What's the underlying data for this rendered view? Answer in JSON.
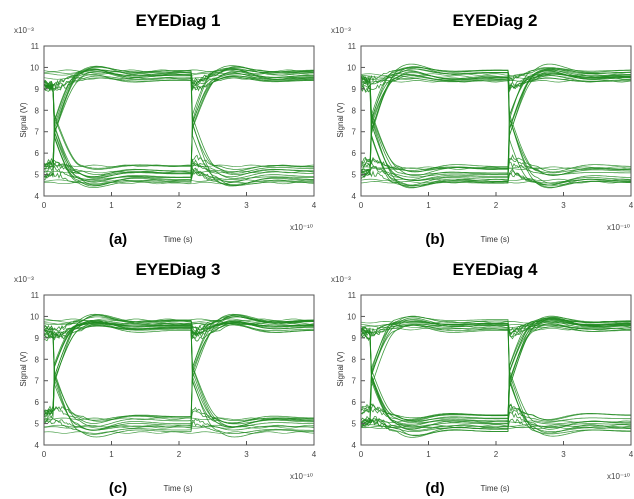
{
  "chart_data": [
    {
      "type": "line",
      "title": "EYEDiag 1",
      "panel_label": "(a)",
      "xlabel": "Time (s)",
      "ylabel": "Signal (V)",
      "x_exponent": "x10⁻¹⁰",
      "y_exponent": "x10⁻³",
      "xlim": [
        0,
        4
      ],
      "ylim": [
        4,
        11
      ],
      "x_ticks": [
        "0",
        "1",
        "2",
        "3",
        "4"
      ],
      "y_ticks": [
        "4",
        "5",
        "6",
        "7",
        "8",
        "9",
        "10",
        "11"
      ],
      "color": "#1f8a1f",
      "grid": false,
      "eye_center_x": [
        0.15,
        2.2
      ],
      "eye_high_level": 9.6,
      "eye_low_level": 5.0
    },
    {
      "type": "line",
      "title": "EYEDiag 2",
      "panel_label": "(b)",
      "xlabel": "Time (s)",
      "ylabel": "Signal (V)",
      "x_exponent": "x10⁻¹⁰",
      "y_exponent": "x10⁻³",
      "xlim": [
        0,
        4
      ],
      "ylim": [
        4,
        11
      ],
      "x_ticks": [
        "0",
        "1",
        "2",
        "3",
        "4"
      ],
      "y_ticks": [
        "4",
        "5",
        "6",
        "7",
        "8",
        "9",
        "10",
        "11"
      ],
      "color": "#1f8a1f",
      "grid": false,
      "eye_center_x": [
        0.15,
        2.2
      ],
      "eye_high_level": 9.6,
      "eye_low_level": 5.0
    },
    {
      "type": "line",
      "title": "EYEDiag 3",
      "panel_label": "(c)",
      "xlabel": "Time (s)",
      "ylabel": "Signal (V)",
      "x_exponent": "x10⁻¹⁰",
      "y_exponent": "x10⁻³",
      "xlim": [
        0,
        4
      ],
      "ylim": [
        4,
        11
      ],
      "x_ticks": [
        "0",
        "1",
        "2",
        "3",
        "4"
      ],
      "y_ticks": [
        "4",
        "5",
        "6",
        "7",
        "8",
        "9",
        "10",
        "11"
      ],
      "color": "#1f8a1f",
      "grid": false,
      "eye_center_x": [
        0.15,
        2.2
      ],
      "eye_high_level": 9.6,
      "eye_low_level": 5.0
    },
    {
      "type": "line",
      "title": "EYEDiag 4",
      "panel_label": "(d)",
      "xlabel": "Time (s)",
      "ylabel": "Signal (V)",
      "x_exponent": "x10⁻¹⁰",
      "y_exponent": "x10⁻³",
      "xlim": [
        0,
        4
      ],
      "ylim": [
        4,
        11
      ],
      "x_ticks": [
        "0",
        "1",
        "2",
        "3",
        "4"
      ],
      "y_ticks": [
        "4",
        "5",
        "6",
        "7",
        "8",
        "9",
        "10",
        "11"
      ],
      "color": "#1f8a1f",
      "grid": false,
      "eye_center_x": [
        0.15,
        2.2
      ],
      "eye_high_level": 9.6,
      "eye_low_level": 5.0
    }
  ]
}
